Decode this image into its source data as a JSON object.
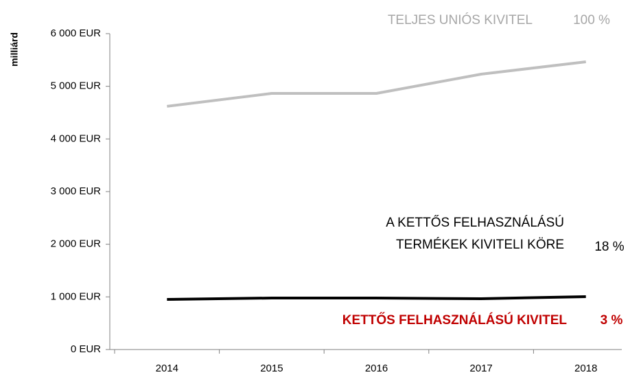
{
  "chart_data": {
    "type": "line",
    "ylabel": "milliárd",
    "categories": [
      "2014",
      "2015",
      "2016",
      "2017",
      "2018"
    ],
    "series": [
      {
        "name": [
          "TELJES UNIÓS KIVITEL"
        ],
        "share": "100 %",
        "color": "#bfbfbf",
        "values": [
          4620,
          4865,
          4865,
          5230,
          5465
        ]
      },
      {
        "name": [
          "A KETTŐS FELHASZNÁLÁSÚ",
          "TERMÉKEK KIVITELI KÖRE"
        ],
        "share": "18 %",
        "color": "#000000",
        "values": [
          952,
          978,
          978,
          965,
          1004
        ]
      }
    ],
    "annotations": [
      {
        "text": "KETTŐS FELHASZNÁLÁSÚ KIVITEL",
        "share": "3 %",
        "color": "#c00000"
      }
    ],
    "ylim": [
      0,
      6000
    ],
    "yticks": [
      {
        "value": 0,
        "label": "0 EUR"
      },
      {
        "value": 1000,
        "label": "1 000 EUR"
      },
      {
        "value": 2000,
        "label": "2 000 EUR"
      },
      {
        "value": 3000,
        "label": "3 000 EUR"
      },
      {
        "value": 4000,
        "label": "4 000 EUR"
      },
      {
        "value": 5000,
        "label": "5 000 EUR"
      },
      {
        "value": 6000,
        "label": "6 000 EUR"
      }
    ],
    "grid": false
  }
}
